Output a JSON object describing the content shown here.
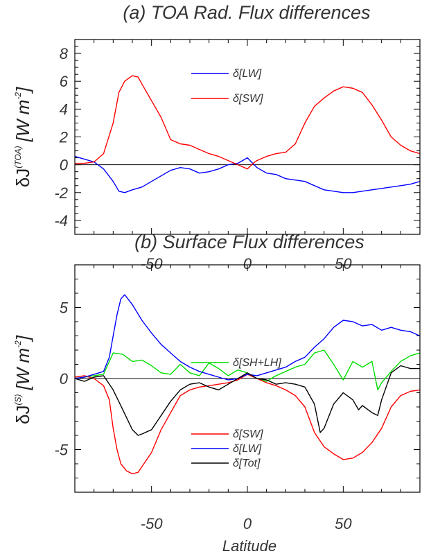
{
  "chart_data": [
    {
      "type": "line",
      "title": "(a) TOA Rad. Flux differences",
      "ylabel": "δJ(TOA) [W m-2]",
      "ylabel_parts": {
        "symbol": "δJ",
        "superscript": "(TOA)",
        "units": "[W m",
        "unit_exp": "-2",
        "close": "]"
      },
      "xlabel": "",
      "xlim": [
        -90,
        90
      ],
      "ylim": [
        -5,
        9
      ],
      "xticks": [
        -50,
        0,
        50
      ],
      "yticks": [
        -4,
        -2,
        0,
        2,
        4,
        6,
        8
      ],
      "zero_line": true,
      "legend_placement": "top-center",
      "series": [
        {
          "name": "δ[LW]",
          "color": "#0000ff",
          "x": [
            -90,
            -85,
            -80,
            -75,
            -70,
            -67,
            -64,
            -60,
            -55,
            -50,
            -45,
            -40,
            -35,
            -30,
            -25,
            -20,
            -15,
            -10,
            -5,
            0,
            5,
            10,
            15,
            20,
            25,
            30,
            35,
            40,
            45,
            50,
            55,
            60,
            65,
            70,
            75,
            80,
            85,
            90
          ],
          "y": [
            0.6,
            0.4,
            0.2,
            -0.3,
            -1.2,
            -1.9,
            -2.0,
            -1.8,
            -1.6,
            -1.2,
            -0.8,
            -0.4,
            -0.2,
            -0.3,
            -0.6,
            -0.5,
            -0.3,
            0.0,
            0.1,
            0.5,
            -0.2,
            -0.6,
            -0.7,
            -1.0,
            -1.1,
            -1.2,
            -1.5,
            -1.8,
            -1.9,
            -2.0,
            -2.0,
            -1.9,
            -1.8,
            -1.7,
            -1.6,
            -1.5,
            -1.4,
            -1.2
          ]
        },
        {
          "name": "δ[SW]",
          "color": "#ff0000",
          "x": [
            -90,
            -85,
            -80,
            -75,
            -70,
            -67,
            -64,
            -60,
            -57,
            -55,
            -50,
            -45,
            -40,
            -35,
            -30,
            -25,
            -20,
            -15,
            -10,
            -5,
            0,
            3,
            5,
            10,
            15,
            20,
            25,
            30,
            35,
            40,
            45,
            50,
            55,
            60,
            65,
            70,
            75,
            80,
            85,
            90
          ],
          "y": [
            0.1,
            0.1,
            0.2,
            0.8,
            3.0,
            5.2,
            6.0,
            6.4,
            6.3,
            5.8,
            4.6,
            3.4,
            1.8,
            1.5,
            1.4,
            1.1,
            0.8,
            0.6,
            0.3,
            0.0,
            -0.3,
            0.1,
            0.3,
            0.6,
            0.8,
            0.9,
            1.5,
            3.0,
            4.2,
            4.8,
            5.3,
            5.6,
            5.5,
            5.2,
            4.3,
            3.2,
            2.0,
            1.4,
            1.0,
            0.8
          ]
        }
      ]
    },
    {
      "type": "line",
      "title": "(b) Surface Flux differences",
      "ylabel": "δJ(S) [W m-2]",
      "ylabel_parts": {
        "symbol": "δJ",
        "superscript": "(S)",
        "units": "[W m",
        "unit_exp": "-2",
        "close": "]"
      },
      "xlabel": "Latitude",
      "xlim": [
        -90,
        90
      ],
      "ylim": [
        -8,
        8
      ],
      "xticks": [
        -50,
        0,
        50
      ],
      "yticks": [
        -5,
        0,
        5
      ],
      "zero_line": true,
      "legend_placement": "top-center and bottom-center",
      "series": [
        {
          "name": "δ[SH+LH]",
          "color": "#00dd00",
          "x": [
            -90,
            -85,
            -80,
            -75,
            -72,
            -70,
            -65,
            -60,
            -55,
            -50,
            -45,
            -40,
            -35,
            -30,
            -25,
            -20,
            -15,
            -10,
            -5,
            0,
            5,
            10,
            15,
            20,
            25,
            30,
            35,
            40,
            45,
            50,
            55,
            60,
            65,
            68,
            70,
            75,
            80,
            85,
            90
          ],
          "y": [
            0.0,
            0.1,
            0.2,
            0.3,
            1.2,
            1.8,
            1.7,
            1.2,
            1.3,
            0.9,
            0.4,
            0.3,
            1.0,
            0.4,
            0.2,
            1.1,
            0.7,
            0.2,
            0.6,
            0.4,
            0.0,
            -0.2,
            0.2,
            0.5,
            0.8,
            1.0,
            1.8,
            2.0,
            1.0,
            -0.1,
            1.2,
            0.8,
            1.2,
            -0.8,
            -0.3,
            0.5,
            1.2,
            1.6,
            1.8
          ]
        },
        {
          "name": "δ[SW]",
          "color": "#ff0000",
          "x": [
            -90,
            -85,
            -80,
            -75,
            -72,
            -70,
            -68,
            -66,
            -63,
            -60,
            -57,
            -55,
            -50,
            -45,
            -40,
            -35,
            -30,
            -25,
            -20,
            -15,
            -10,
            -5,
            0,
            5,
            10,
            15,
            20,
            25,
            30,
            35,
            40,
            45,
            50,
            55,
            60,
            65,
            70,
            75,
            80,
            85,
            90
          ],
          "y": [
            0.1,
            0.2,
            0.0,
            -0.5,
            -1.5,
            -3.5,
            -5.0,
            -6.0,
            -6.5,
            -6.7,
            -6.6,
            -6.2,
            -5.2,
            -3.6,
            -2.4,
            -1.2,
            -0.8,
            -0.6,
            -0.5,
            -0.4,
            -0.3,
            -0.1,
            0.3,
            0.0,
            -0.3,
            -0.5,
            -0.8,
            -1.2,
            -2.0,
            -3.8,
            -4.8,
            -5.3,
            -5.7,
            -5.6,
            -5.2,
            -4.5,
            -3.5,
            -2.0,
            -1.2,
            -0.9,
            -0.8
          ]
        },
        {
          "name": "δ[LW]",
          "color": "#0000ff",
          "x": [
            -90,
            -85,
            -80,
            -75,
            -72,
            -70,
            -68,
            -66,
            -64,
            -60,
            -55,
            -50,
            -45,
            -40,
            -35,
            -30,
            -25,
            -20,
            -15,
            -10,
            -5,
            0,
            5,
            10,
            15,
            20,
            25,
            30,
            35,
            40,
            45,
            50,
            55,
            60,
            65,
            70,
            75,
            80,
            85,
            90
          ],
          "y": [
            0.0,
            0.1,
            0.3,
            0.5,
            1.5,
            3.0,
            4.5,
            5.6,
            5.9,
            5.2,
            4.1,
            3.2,
            2.4,
            1.8,
            1.2,
            0.8,
            0.5,
            0.3,
            0.1,
            -0.1,
            0.0,
            0.3,
            0.2,
            0.4,
            0.6,
            0.8,
            1.2,
            1.5,
            2.2,
            2.8,
            3.6,
            4.1,
            4.0,
            3.7,
            3.8,
            3.4,
            3.6,
            3.4,
            3.3,
            3.0
          ]
        },
        {
          "name": "δ[Tot]",
          "color": "#000000",
          "x": [
            -90,
            -85,
            -80,
            -75,
            -70,
            -65,
            -60,
            -57,
            -55,
            -50,
            -47,
            -45,
            -40,
            -35,
            -30,
            -25,
            -20,
            -15,
            -10,
            -5,
            0,
            5,
            10,
            15,
            20,
            25,
            30,
            35,
            38,
            40,
            45,
            50,
            55,
            58,
            60,
            65,
            68,
            70,
            75,
            80,
            85,
            90
          ],
          "y": [
            0.0,
            -0.2,
            0.1,
            0.2,
            -0.8,
            -2.2,
            -3.6,
            -4.0,
            -3.9,
            -3.6,
            -3.0,
            -2.6,
            -1.6,
            -0.8,
            -0.4,
            -0.3,
            -0.6,
            -0.8,
            -0.4,
            0.0,
            0.4,
            0.0,
            -0.1,
            -0.4,
            -0.3,
            -0.4,
            -0.6,
            -1.8,
            -3.8,
            -3.5,
            -1.8,
            -1.0,
            -1.5,
            -2.2,
            -1.9,
            -2.4,
            -2.6,
            -1.5,
            0.4,
            0.9,
            0.7,
            0.7
          ]
        }
      ]
    }
  ],
  "legend_text": {
    "a_lw": "δ[LW]",
    "a_sw": "δ[SW]",
    "b_shlh": "δ[SH+LH]",
    "b_sw": "δ[SW]",
    "b_lw": "δ[LW]",
    "b_tot": "δ[Tot]"
  },
  "colors": {
    "lw": "#0000ff",
    "sw": "#ff0000",
    "shlh": "#00dd00",
    "tot": "#000000",
    "axis": "#000000",
    "text": "#333333"
  }
}
